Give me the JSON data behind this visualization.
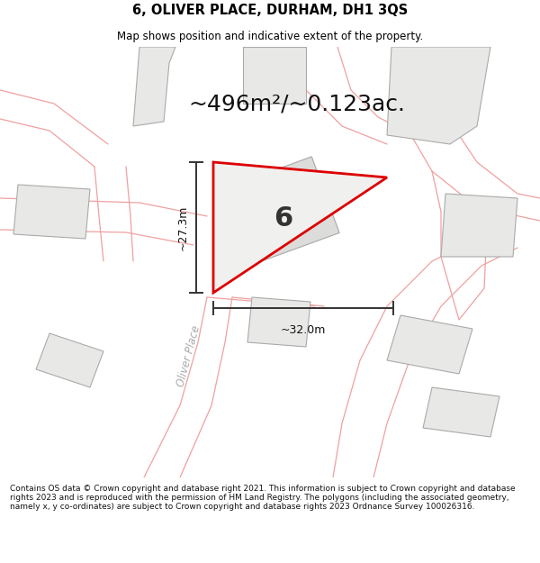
{
  "title_line1": "6, OLIVER PLACE, DURHAM, DH1 3QS",
  "title_line2": "Map shows position and indicative extent of the property.",
  "area_text": "~496m²/~0.123ac.",
  "footer_text": "Contains OS data © Crown copyright and database right 2021. This information is subject to Crown copyright and database rights 2023 and is reproduced with the permission of HM Land Registry. The polygons (including the associated geometry, namely x, y co-ordinates) are subject to Crown copyright and database rights 2023 Ordnance Survey 100026316.",
  "property_label": "6",
  "dim1_label": "~27.3m",
  "dim2_label": "~32.0m",
  "map_bg": "#ffffff",
  "property_fill": "#f0f0ee",
  "property_edge": "#dd0000",
  "building_fill": "#e8e8e6",
  "building_edge": "#aaaaaa",
  "dim_line_color": "#333333",
  "road_line_color": "#f0a0a0",
  "road_label": "Oliver Place",
  "road_label_color": "#aaaaaa",
  "area_fontsize": 18,
  "label_fontsize": 22
}
